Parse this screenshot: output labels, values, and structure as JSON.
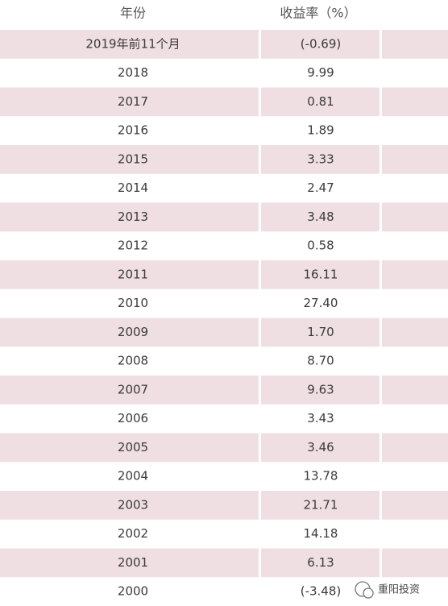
{
  "table": {
    "header": [
      "年份",
      "收益率（%）"
    ],
    "rows": [
      [
        "2019年前11个月",
        "(-0.69)"
      ],
      [
        "2018",
        "9.99"
      ],
      [
        "2017",
        "0.81"
      ],
      [
        "2016",
        "1.89"
      ],
      [
        "2015",
        "3.33"
      ],
      [
        "2014",
        "2.47"
      ],
      [
        "2013",
        "3.48"
      ],
      [
        "2012",
        "0.58"
      ],
      [
        "2011",
        "16.11"
      ],
      [
        "2010",
        "27.40"
      ],
      [
        "2009",
        "1.70"
      ],
      [
        "2008",
        "8.70"
      ],
      [
        "2007",
        "9.63"
      ],
      [
        "2006",
        "3.43"
      ],
      [
        "2005",
        "3.46"
      ],
      [
        "2004",
        "13.78"
      ],
      [
        "2003",
        "21.71"
      ],
      [
        "2002",
        "14.18"
      ],
      [
        "2001",
        "6.13"
      ],
      [
        "2000",
        "(-3.48)"
      ]
    ]
  },
  "watermark": "重阳投资"
}
